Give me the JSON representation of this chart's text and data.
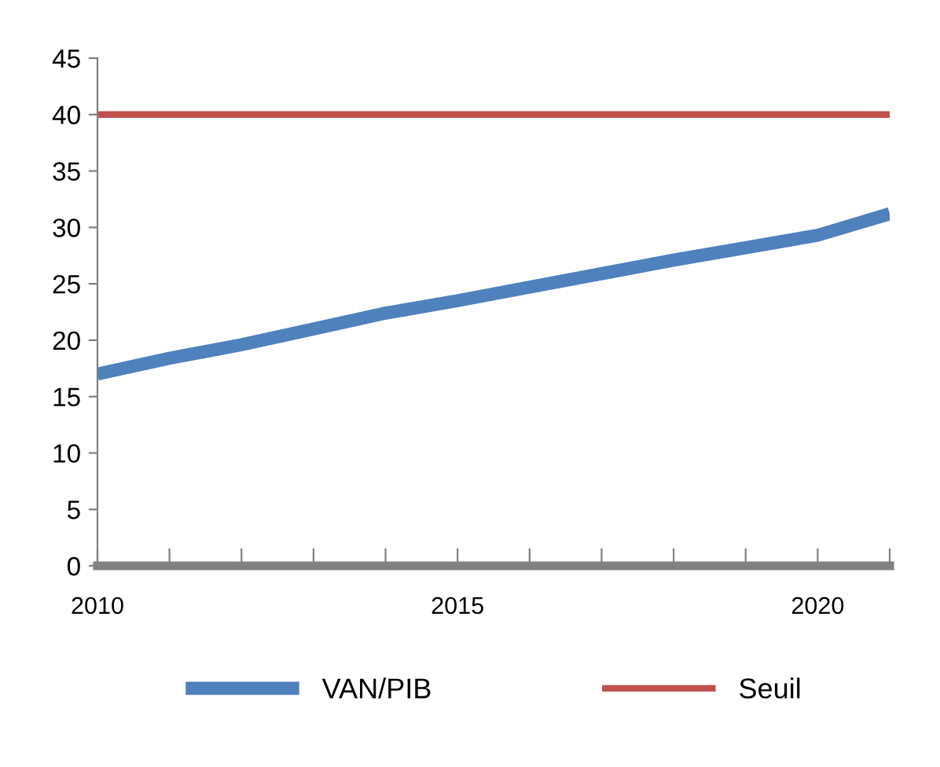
{
  "chart_data": {
    "type": "line",
    "x": [
      2010,
      2011,
      2012,
      2013,
      2014,
      2015,
      2016,
      2017,
      2018,
      2019,
      2020,
      2021
    ],
    "series": [
      {
        "name": "VAN/PIB",
        "color": "#4f81bd",
        "values": [
          17.0,
          18.4,
          19.6,
          21.0,
          22.4,
          23.5,
          24.7,
          25.9,
          27.1,
          28.2,
          29.3,
          31.2
        ]
      },
      {
        "name": "Seuil",
        "color": "#c0504d",
        "values": [
          40,
          40,
          40,
          40,
          40,
          40,
          40,
          40,
          40,
          40,
          40,
          40
        ]
      }
    ],
    "xlim": [
      2010,
      2021
    ],
    "xticks": [
      2010,
      {
        "value": 2011,
        "label": null
      },
      {
        "value": 2012,
        "label": null
      },
      {
        "value": 2013,
        "label": null
      },
      {
        "value": 2014,
        "label": null
      },
      2015,
      {
        "value": 2016,
        "label": null
      },
      {
        "value": 2017,
        "label": null
      },
      {
        "value": 2018,
        "label": null
      },
      {
        "value": 2019,
        "label": null
      },
      2020,
      {
        "value": 2021,
        "label": null
      }
    ],
    "ylim": [
      0,
      45
    ],
    "yticks": [
      0,
      5,
      10,
      15,
      20,
      25,
      30,
      35,
      40,
      45
    ],
    "grid": false,
    "legend": "bottom",
    "marker": "none",
    "line_style": "solid"
  }
}
